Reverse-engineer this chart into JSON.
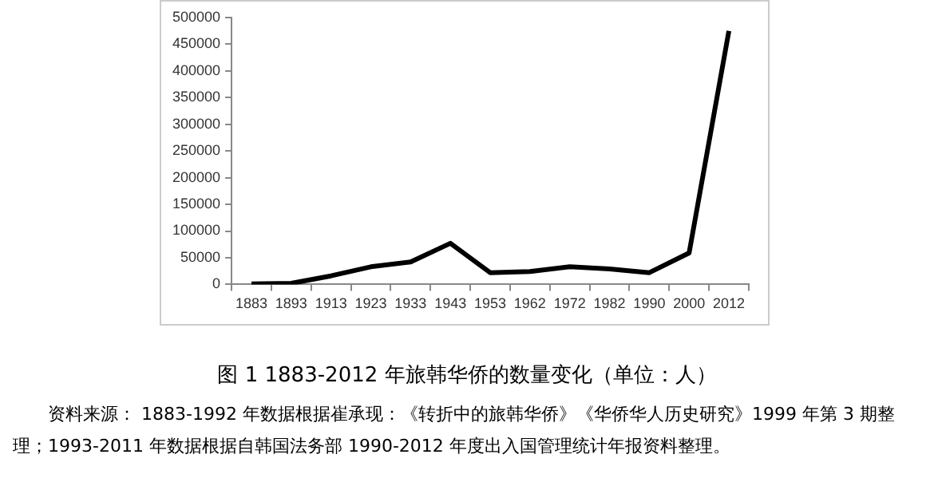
{
  "chart_data": {
    "type": "line",
    "title": "图 1 1883-2012 年旅韩华侨的数量变化（单位：人）",
    "categories": [
      "1883",
      "1893",
      "1913",
      "1923",
      "1933",
      "1943",
      "1953",
      "1962",
      "1972",
      "1982",
      "1990",
      "2000",
      "2012"
    ],
    "series": [
      {
        "color": "#000000",
        "values": [
          1000,
          2000,
          16000,
          33000,
          42000,
          77000,
          22000,
          24000,
          33000,
          29000,
          22000,
          59000,
          475000
        ]
      }
    ],
    "ylim": [
      0,
      500000
    ],
    "yticks": [
      0,
      50000,
      100000,
      150000,
      200000,
      250000,
      300000,
      350000,
      400000,
      450000,
      500000
    ],
    "grid": false,
    "legend": false,
    "marker": "none",
    "line_style": "solid",
    "annotations": [
      "资料来源： 1883-1992 年数据根据崔承现：《转折中的旅韩华侨》《华侨华人历史研究》1999 年第 3 期整理；1993-2011 年数据根据自韩国法务部 1990-2012 年度出入国管理统计年报资料整理。"
    ]
  }
}
